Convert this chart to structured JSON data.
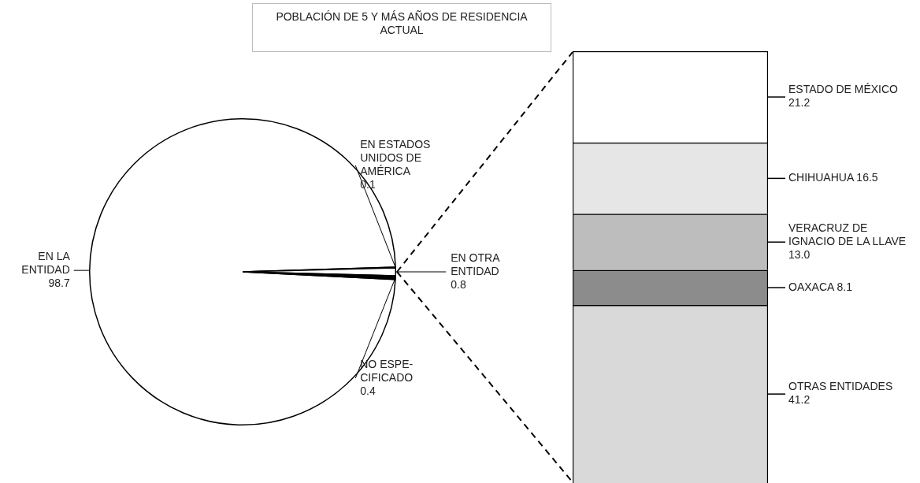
{
  "chart_data": [
    {
      "type": "pie",
      "title": "POBLACIÓN DE 5 Y MÁS AÑOS DE RESIDENCIA ACTUAL",
      "categories": [
        "EN LA ENTIDAD",
        "EN ESTADOS UNIDOS DE AMÉRICA",
        "EN OTRA ENTIDAD",
        "NO ESPE-CIFICADO"
      ],
      "values": [
        98.7,
        0.1,
        0.8,
        0.4
      ],
      "colors": [
        "#ffffff",
        "#555555",
        "#ffffff",
        "#000000"
      ],
      "data_labels": true
    },
    {
      "type": "bar",
      "stacked": true,
      "categories": [
        null
      ],
      "series": [
        {
          "name": "OTRAS ENTIDADES",
          "color": "#d9d9d9",
          "values": [
            41.2
          ],
          "value_labels": [
            "41.2"
          ]
        },
        {
          "name": "OAXACA",
          "color": "#8c8c8c",
          "values": [
            8.1
          ],
          "value_labels": [
            "8.1"
          ]
        },
        {
          "name": "VERACRUZ DE IGNACIO DE LA LLAVE",
          "color": "#bdbdbd",
          "values": [
            13.0
          ],
          "value_labels": [
            "13.0"
          ]
        },
        {
          "name": "CHIHUAHUA",
          "color": "#e6e6e6",
          "values": [
            16.5
          ],
          "value_labels": [
            "16.5"
          ]
        },
        {
          "name": "ESTADO DE MÉXICO",
          "color": "#ffffff",
          "values": [
            21.2
          ],
          "value_labels": [
            "21.2"
          ]
        }
      ]
    }
  ]
}
